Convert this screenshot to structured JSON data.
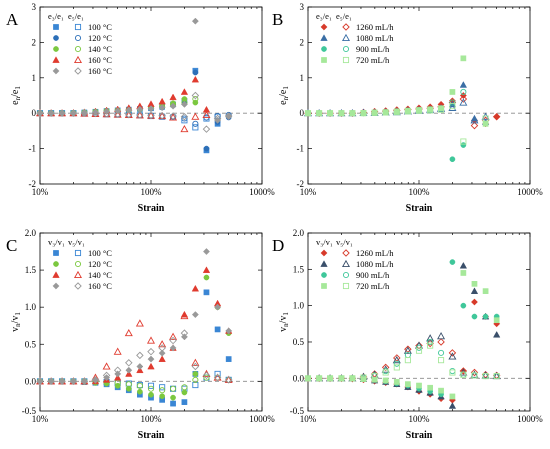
{
  "chart_data": [
    {
      "id": "A",
      "type": "scatter",
      "panel_label": "A",
      "xlabel": "Strain",
      "ylabel_main": "e",
      "ylabel_sub": "n",
      "ylabel_sep": "/e",
      "ylabel_sub2": "1",
      "xscale": "log",
      "xlim": [
        0.1,
        10
      ],
      "xticks": [
        0.1,
        1,
        10
      ],
      "xticklabels": [
        "10%",
        "100%",
        "1000%"
      ],
      "ylim": [
        -2,
        3
      ],
      "yticks": [
        -2,
        -1,
        0,
        1,
        2,
        3
      ],
      "yticklabels": [
        "-2",
        "-1",
        "0",
        "1",
        "2",
        "3"
      ],
      "zero_line": true,
      "legend_position": "top-left",
      "legend_headers": [
        "e₃/e₁",
        "e₅/e₁"
      ],
      "x": [
        0.1,
        0.126,
        0.158,
        0.2,
        0.251,
        0.316,
        0.398,
        0.501,
        0.631,
        0.794,
        1.0,
        1.26,
        1.58,
        2.0,
        2.51,
        3.16,
        3.98,
        5.01
      ],
      "series": [
        {
          "name": "100 °C",
          "color": "#3a86d4",
          "filled_marker": "square",
          "open_marker": "square",
          "filled": [
            0,
            0,
            0,
            0,
            0.02,
            0.04,
            0.06,
            0.08,
            0.1,
            0.12,
            0.14,
            0.18,
            0.25,
            0.35,
            1.2,
            -1.05,
            -0.3,
            null
          ],
          "open": [
            0,
            0,
            0,
            0,
            -0.01,
            -0.02,
            -0.03,
            -0.04,
            -0.05,
            -0.06,
            -0.08,
            -0.1,
            -0.12,
            -0.2,
            -0.4,
            -0.15,
            -0.1,
            null
          ]
        },
        {
          "name": "120 °C",
          "color": "#2c6fb8",
          "filled_marker": "circle",
          "open_marker": "circle",
          "filled": [
            0,
            0,
            0,
            0,
            0.01,
            0.03,
            0.05,
            0.07,
            0.09,
            0.11,
            0.13,
            0.16,
            0.22,
            0.3,
            1.15,
            -1.0,
            -0.25,
            -0.12
          ],
          "open": [
            0,
            0,
            0,
            0,
            0,
            -0.01,
            -0.02,
            -0.03,
            -0.04,
            -0.05,
            -0.06,
            -0.08,
            -0.1,
            -0.15,
            -0.3,
            -0.12,
            -0.08,
            -0.05
          ]
        },
        {
          "name": "140 °C",
          "color": "#7bc83f",
          "filled_marker": "circle",
          "open_marker": "circle",
          "filled": [
            0,
            0,
            0,
            0.01,
            0.02,
            0.04,
            0.06,
            0.08,
            0.1,
            0.13,
            0.16,
            0.2,
            0.28,
            0.4,
            0.3,
            null,
            null,
            null
          ],
          "open": [
            0,
            0,
            0,
            0,
            0.02,
            0.04,
            0.06,
            0.08,
            0.1,
            0.12,
            0.15,
            0.18,
            0.24,
            0.3,
            0.4,
            null,
            null,
            null
          ]
        },
        {
          "name": "160 °C",
          "color": "#e03b2f",
          "filled_marker": "triangle",
          "open_marker": "triangle",
          "filled": [
            0,
            0,
            0,
            0.01,
            0.03,
            0.05,
            0.08,
            0.11,
            0.15,
            0.2,
            0.26,
            0.33,
            0.45,
            0.6,
            0.95,
            0.1,
            null,
            null
          ],
          "open": [
            0,
            0,
            0,
            0,
            -0.01,
            -0.02,
            -0.03,
            -0.04,
            -0.05,
            -0.06,
            -0.07,
            -0.08,
            -0.12,
            -0.45,
            -0.1,
            -0.05,
            null,
            null
          ]
        },
        {
          "name": "160 °C",
          "color": "#999999",
          "filled_marker": "diamond",
          "open_marker": "diamond",
          "filled": [
            0,
            0,
            0,
            0,
            0.02,
            0.03,
            0.05,
            0.07,
            0.09,
            0.11,
            0.13,
            0.16,
            0.2,
            0.25,
            2.6,
            null,
            -0.2,
            -0.1
          ],
          "open": [
            0,
            0,
            0,
            0,
            0,
            -0.01,
            -0.02,
            -0.03,
            -0.04,
            -0.05,
            -0.06,
            -0.07,
            -0.08,
            -0.1,
            0.5,
            -0.45,
            -0.15,
            -0.08
          ]
        }
      ]
    },
    {
      "id": "B",
      "type": "scatter",
      "panel_label": "B",
      "xlabel": "Strain",
      "ylabel_main": "e",
      "ylabel_sub": "n",
      "ylabel_sep": "/e",
      "ylabel_sub2": "1",
      "xscale": "log",
      "xlim": [
        0.1,
        10
      ],
      "xticks": [
        0.1,
        1,
        10
      ],
      "xticklabels": [
        "10%",
        "100%",
        "1000%"
      ],
      "ylim": [
        -2,
        3
      ],
      "yticks": [
        -2,
        -1,
        0,
        1,
        2,
        3
      ],
      "yticklabels": [
        "-2",
        "-1",
        "0",
        "1",
        "2",
        "3"
      ],
      "zero_line": true,
      "legend_position": "top-left",
      "legend_headers": [
        "e₃/e₁",
        "e₅/e₁"
      ],
      "x": [
        0.1,
        0.126,
        0.158,
        0.2,
        0.251,
        0.316,
        0.398,
        0.501,
        0.631,
        0.794,
        1.0,
        1.26,
        1.58,
        2.0,
        2.51,
        3.16,
        3.98,
        5.01
      ],
      "series": [
        {
          "name": "1260 mL/h",
          "color": "#d73a2a",
          "filled_marker": "diamond",
          "open_marker": "diamond",
          "filled": [
            0,
            0,
            0,
            0,
            0.01,
            0.03,
            0.05,
            0.07,
            0.1,
            0.12,
            0.15,
            0.18,
            0.25,
            0.35,
            0.5,
            -0.2,
            -0.3,
            -0.1
          ],
          "open": [
            0,
            0,
            0,
            0,
            0,
            0.02,
            0.04,
            0.06,
            0.08,
            0.1,
            0.12,
            0.14,
            0.18,
            0.3,
            0.4,
            -0.35,
            -0.2,
            -0.1
          ]
        },
        {
          "name": "1080 mL/h",
          "color": "#3a6ea5",
          "filled_marker": "triangle",
          "open_marker": "triangle",
          "filled": [
            0,
            0,
            0,
            0,
            0,
            0.01,
            0.02,
            0.04,
            0.06,
            0.08,
            0.1,
            0.12,
            0.15,
            0.25,
            0.8,
            -0.15,
            -0.25,
            null
          ],
          "open": [
            0,
            0,
            0,
            0,
            0,
            0.01,
            0.01,
            0.02,
            0.03,
            0.05,
            0.07,
            0.09,
            0.12,
            0.15,
            0.3,
            -0.2,
            -0.1,
            null
          ]
        },
        {
          "name": "900 mL/h",
          "color": "#3fc79a",
          "filled_marker": "circle",
          "open_marker": "circle",
          "filled": [
            0,
            0,
            0,
            0,
            0,
            0.01,
            0.02,
            0.03,
            0.05,
            0.07,
            0.09,
            0.11,
            0.14,
            -1.3,
            -0.9,
            null,
            null,
            null
          ],
          "open": [
            0,
            0,
            0,
            0,
            0,
            0,
            0.01,
            0.02,
            0.04,
            0.06,
            0.08,
            0.1,
            0.13,
            0.3,
            0.6,
            null,
            null,
            null
          ]
        },
        {
          "name": "720 mL/h",
          "color": "#a6e89a",
          "filled_marker": "square",
          "open_marker": "square",
          "filled": [
            0,
            0,
            0,
            0,
            0,
            0.01,
            0.02,
            0.03,
            0.05,
            0.07,
            0.09,
            0.11,
            0.14,
            0.6,
            1.55,
            null,
            -0.3,
            null
          ],
          "open": [
            0,
            0,
            0,
            0,
            0,
            0,
            0.01,
            0.02,
            0.03,
            0.05,
            0.07,
            0.08,
            0.1,
            0.2,
            -0.8,
            null,
            -0.15,
            null
          ]
        }
      ]
    },
    {
      "id": "C",
      "type": "scatter",
      "panel_label": "C",
      "xlabel": "Strain",
      "ylabel_main": "v",
      "ylabel_sub": "n",
      "ylabel_sep": "/v",
      "ylabel_sub2": "1",
      "xscale": "log",
      "xlim": [
        0.1,
        10
      ],
      "xticks": [
        0.1,
        1,
        10
      ],
      "xticklabels": [
        "10%",
        "100%",
        "1000%"
      ],
      "ylim": [
        -0.4,
        2.0
      ],
      "yticks": [
        -0.5,
        0.0,
        0.5,
        1.0,
        1.5,
        2.0
      ],
      "yticklabels": [
        "-0.5",
        "0.0",
        "0.5",
        "1.0",
        "1.5",
        "2.0"
      ],
      "zero_line": true,
      "legend_position": "top-left",
      "legend_headers": [
        "v₃/v₁",
        "v₅/v₁"
      ],
      "x": [
        0.1,
        0.126,
        0.158,
        0.2,
        0.251,
        0.316,
        0.398,
        0.501,
        0.631,
        0.794,
        1.0,
        1.26,
        1.58,
        2.0,
        2.51,
        3.16,
        3.98,
        5.01
      ],
      "series": [
        {
          "name": "100 °C",
          "color": "#3a86d4",
          "filled_marker": "square",
          "open_marker": "square",
          "filled": [
            0,
            0,
            0,
            0,
            -0.01,
            -0.02,
            -0.04,
            -0.08,
            -0.12,
            -0.18,
            -0.22,
            -0.25,
            -0.3,
            -0.28,
            0.1,
            1.2,
            0.7,
            0.3
          ],
          "open": [
            0,
            0,
            0,
            0,
            0,
            0,
            -0.01,
            -0.02,
            -0.03,
            -0.05,
            -0.06,
            -0.08,
            -0.1,
            -0.1,
            -0.05,
            0.05,
            0.1,
            0.02
          ]
        },
        {
          "name": "120 °C",
          "color": "#7bc83f",
          "filled_marker": "circle",
          "open_marker": "circle",
          "filled": [
            0,
            0,
            0,
            0,
            -0.01,
            -0.02,
            -0.03,
            -0.06,
            -0.1,
            -0.14,
            -0.18,
            -0.2,
            -0.22,
            -0.15,
            0.1,
            1.4,
            1.0,
            0.65
          ],
          "open": [
            0,
            0,
            0,
            0,
            0,
            0,
            -0.01,
            -0.02,
            -0.04,
            -0.06,
            -0.1,
            -0.12,
            -0.1,
            -0.08,
            0.02,
            0.05,
            0.05,
            0.02
          ]
        },
        {
          "name": "140 °C",
          "color": "#e03b2f",
          "filled_marker": "triangle",
          "open_marker": "triangle",
          "filled": [
            0,
            0,
            0,
            0,
            0,
            0,
            0.02,
            0.05,
            0.1,
            0.15,
            0.2,
            0.3,
            0.45,
            0.9,
            1.25,
            1.5,
            1.05,
            0.68
          ],
          "open": [
            0,
            0,
            0,
            0,
            0,
            0.05,
            0.2,
            0.4,
            0.65,
            0.78,
            0.55,
            0.5,
            0.6,
            0.88,
            0.25,
            0.1,
            0.05,
            0.02
          ]
        },
        {
          "name": "160 °C",
          "color": "#999999",
          "filled_marker": "diamond",
          "open_marker": "diamond",
          "filled": [
            0,
            0,
            0,
            0,
            0,
            0.02,
            0.05,
            0.1,
            0.15,
            0.2,
            0.3,
            0.38,
            0.45,
            0.6,
            0.9,
            1.75,
            1.0,
            0.68
          ],
          "open": [
            0,
            0,
            0,
            0,
            0,
            0.02,
            0.08,
            0.15,
            0.25,
            0.35,
            0.4,
            0.45,
            0.55,
            0.65,
            0.2,
            0.08,
            0.05,
            0.02
          ]
        }
      ]
    },
    {
      "id": "D",
      "type": "scatter",
      "panel_label": "D",
      "xlabel": "Strain",
      "ylabel_main": "v",
      "ylabel_sub": "n",
      "ylabel_sep": "/v",
      "ylabel_sub2": "1",
      "xscale": "log",
      "xlim": [
        0.1,
        10
      ],
      "xticks": [
        0.1,
        1,
        10
      ],
      "xticklabels": [
        "10%",
        "100%",
        "1000%"
      ],
      "ylim": [
        -0.45,
        2.0
      ],
      "yticks": [
        -0.5,
        0.0,
        0.5,
        1.0,
        1.5,
        2.0
      ],
      "yticklabels": [
        "-0.5",
        "0.0",
        "0.5",
        "1.0",
        "1.5",
        "2.0"
      ],
      "zero_line": true,
      "legend_position": "top-left",
      "legend_headers": [
        "v₃/v₁",
        "v₅/v₁"
      ],
      "x": [
        0.1,
        0.126,
        0.158,
        0.2,
        0.251,
        0.316,
        0.398,
        0.501,
        0.631,
        0.794,
        1.0,
        1.26,
        1.58,
        2.0,
        2.51,
        3.16,
        3.98,
        5.01
      ],
      "series": [
        {
          "name": "1260 mL/h",
          "color": "#d73a2a",
          "filled_marker": "diamond",
          "open_marker": "diamond",
          "filled": [
            0,
            0,
            0,
            0,
            -0.01,
            -0.02,
            -0.04,
            -0.06,
            -0.08,
            -0.12,
            -0.18,
            -0.22,
            -0.28,
            -0.3,
            0.1,
            1.05,
            0.85,
            0.75
          ],
          "open": [
            0,
            0,
            0,
            0,
            0,
            0.02,
            0.06,
            0.15,
            0.28,
            0.4,
            0.45,
            0.48,
            0.5,
            0.35,
            0.1,
            0.08,
            0.05,
            0.04
          ]
        },
        {
          "name": "1080 mL/h",
          "color": "#3a4f6a",
          "filled_marker": "triangle",
          "open_marker": "triangle",
          "filled": [
            0,
            0,
            0,
            0,
            0,
            -0.01,
            -0.03,
            -0.05,
            -0.08,
            -0.12,
            -0.16,
            -0.2,
            -0.25,
            -0.38,
            1.55,
            1.2,
            0.85,
            0.6
          ],
          "open": [
            0,
            0,
            0,
            0,
            0,
            0.02,
            0.05,
            0.12,
            0.25,
            0.38,
            0.45,
            0.55,
            0.58,
            0.3,
            0.08,
            0.05,
            0.04,
            0.03
          ]
        },
        {
          "name": "900 mL/h",
          "color": "#3fc79a",
          "filled_marker": "circle",
          "open_marker": "circle",
          "filled": [
            0,
            0,
            0,
            0,
            0,
            -0.01,
            -0.02,
            -0.04,
            -0.07,
            -0.1,
            -0.14,
            -0.18,
            -0.22,
            1.6,
            1.0,
            0.85,
            0.85,
            0.85
          ],
          "open": [
            0,
            0,
            0,
            0,
            0,
            0.01,
            0.04,
            0.1,
            0.2,
            0.32,
            0.42,
            0.5,
            0.35,
            0.1,
            0.05,
            0.04,
            0.03,
            0.03
          ]
        },
        {
          "name": "720 mL/h",
          "color": "#a6e89a",
          "filled_marker": "square",
          "open_marker": "square",
          "filled": [
            0,
            0,
            0,
            0,
            0,
            -0.01,
            -0.02,
            -0.03,
            -0.05,
            -0.08,
            -0.1,
            -0.13,
            -0.17,
            -0.25,
            1.45,
            1.3,
            1.2,
            0.8
          ],
          "open": [
            0,
            0,
            0,
            0,
            0,
            0.01,
            0.03,
            0.08,
            0.15,
            0.25,
            0.38,
            0.45,
            0.25,
            0.08,
            0.05,
            0.04,
            0.03,
            0.03
          ]
        }
      ]
    }
  ]
}
